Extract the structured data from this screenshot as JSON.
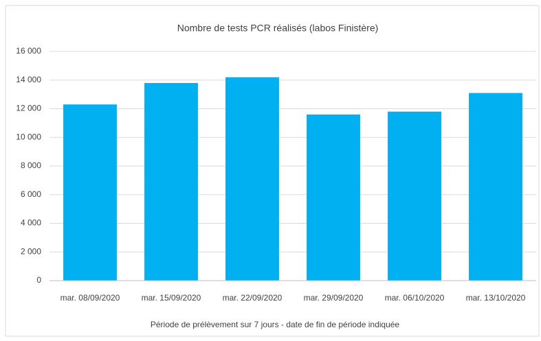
{
  "chart_data": {
    "type": "bar",
    "title": "Nombre de tests PCR réalisés (labos Finistère)",
    "x_label": "Période de prélèvement sur 7 jours - date de fin de période indiquée",
    "categories": [
      "mar. 08/09/2020",
      "mar. 15/09/2020",
      "mar. 22/09/2020",
      "mar. 29/09/2020",
      "mar. 06/10/2020",
      "mar. 13/10/2020"
    ],
    "values": [
      12300,
      13800,
      14200,
      11600,
      11800,
      13100
    ],
    "color": "#00b0f0",
    "ylim": [
      0,
      16000
    ],
    "yticks": [
      0,
      {
        "value": 2000,
        "label": "2 000"
      },
      {
        "value": 4000,
        "label": "4 000"
      },
      {
        "value": 6000,
        "label": "6 000"
      },
      {
        "value": 8000,
        "label": "8 000"
      },
      {
        "value": 10000,
        "label": "10 000"
      },
      {
        "value": 12000,
        "label": "12 000"
      },
      {
        "value": 14000,
        "label": "14 000"
      },
      {
        "value": 16000,
        "label": "16 000"
      }
    ],
    "grid": true
  }
}
